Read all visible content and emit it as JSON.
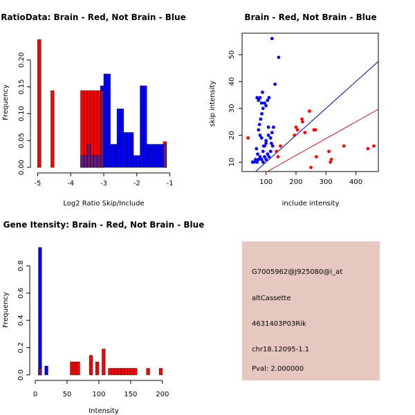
{
  "chart_data": [
    {
      "type": "bar",
      "id": "ratio_hist",
      "title": "RatioData: Brain - Red, Not Brain - Blue",
      "xlabel": "Log2 Ratio Skip/Include",
      "ylabel": "Frequency",
      "xlim": [
        -5.05,
        -0.95
      ],
      "ylim": [
        0,
        0.25
      ],
      "xticks": [
        -5,
        -4,
        -3,
        -2,
        -1
      ],
      "yticks": [
        0.0,
        0.05,
        0.1,
        0.15,
        0.2
      ],
      "ytick_labels": [
        "0.00",
        "0.05",
        "0.10",
        "0.15",
        "0.20"
      ],
      "bin_width": 0.1,
      "series": [
        {
          "name": "Brain",
          "color": "#ff0000",
          "bins": [
            {
              "start": -5.0,
              "value": 0.238
            },
            {
              "start": -4.6,
              "value": 0.143
            },
            {
              "start": -3.7,
              "value": 0.143
            },
            {
              "start": -3.6,
              "value": 0.143
            },
            {
              "start": -3.5,
              "value": 0.143
            },
            {
              "start": -3.4,
              "value": 0.143
            },
            {
              "start": -3.3,
              "value": 0.143
            },
            {
              "start": -3.2,
              "value": 0.143
            },
            {
              "start": -3.1,
              "value": 0.143
            },
            {
              "start": -1.2,
              "value": 0.048
            }
          ]
        },
        {
          "name": "Not Brain",
          "color": "#0000ff",
          "bins": [
            {
              "start": -3.7,
              "value": 0.022
            },
            {
              "start": -3.6,
              "value": 0.022
            },
            {
              "start": -3.5,
              "value": 0.043
            },
            {
              "start": -3.4,
              "value": 0.022
            },
            {
              "start": -3.3,
              "value": 0.022
            },
            {
              "start": -3.2,
              "value": 0.022
            },
            {
              "start": -3.1,
              "value": 0.152
            },
            {
              "start": -3.0,
              "value": 0.174
            },
            {
              "start": -2.9,
              "value": 0.174
            },
            {
              "start": -2.8,
              "value": 0.043
            },
            {
              "start": -2.7,
              "value": 0.043
            },
            {
              "start": -2.6,
              "value": 0.109
            },
            {
              "start": -2.5,
              "value": 0.109
            },
            {
              "start": -2.4,
              "value": 0.065
            },
            {
              "start": -2.3,
              "value": 0.065
            },
            {
              "start": -2.2,
              "value": 0.065
            },
            {
              "start": -2.1,
              "value": 0.022
            },
            {
              "start": -2.0,
              "value": 0.022
            },
            {
              "start": -1.9,
              "value": 0.152
            },
            {
              "start": -1.8,
              "value": 0.152
            },
            {
              "start": -1.7,
              "value": 0.043
            },
            {
              "start": -1.6,
              "value": 0.043
            },
            {
              "start": -1.5,
              "value": 0.043
            },
            {
              "start": -1.4,
              "value": 0.043
            },
            {
              "start": -1.3,
              "value": 0.043
            },
            {
              "start": -1.2,
              "value": 0.043
            }
          ]
        }
      ]
    },
    {
      "type": "scatter",
      "id": "intensity_scatter",
      "title": "Brain - Red, Not Brain - Blue",
      "xlabel": "include intensity",
      "ylabel": "skip intensity",
      "xlim": [
        20,
        475
      ],
      "ylim": [
        6.5,
        58
      ],
      "xticks": [
        100,
        200,
        300,
        400
      ],
      "yticks": [
        10,
        20,
        30,
        40,
        50
      ],
      "lines": [
        {
          "color": "#00008b",
          "slope": 0.1,
          "intercept": 0
        },
        {
          "color": "#b22222",
          "slope": 0.0625,
          "intercept": 0
        }
      ],
      "series": [
        {
          "name": "Not Brain",
          "color": "#0000ff",
          "points": [
            [
              55,
              10
            ],
            [
              60,
              10
            ],
            [
              65,
              11
            ],
            [
              70,
              10
            ],
            [
              75,
              11
            ],
            [
              72,
              13
            ],
            [
              68,
              15
            ],
            [
              80,
              12
            ],
            [
              85,
              11
            ],
            [
              90,
              10
            ],
            [
              95,
              12
            ],
            [
              100,
              11
            ],
            [
              105,
              13
            ],
            [
              110,
              12
            ],
            [
              115,
              14
            ],
            [
              90,
              14
            ],
            [
              95,
              16
            ],
            [
              100,
              18
            ],
            [
              85,
              19
            ],
            [
              80,
              20
            ],
            [
              75,
              22
            ],
            [
              78,
              24
            ],
            [
              82,
              26
            ],
            [
              86,
              28
            ],
            [
              90,
              30
            ],
            [
              95,
              32
            ],
            [
              100,
              31
            ],
            [
              105,
              33
            ],
            [
              110,
              34
            ],
            [
              85,
              32
            ],
            [
              80,
              34
            ],
            [
              70,
              34
            ],
            [
              75,
              33
            ],
            [
              88,
              36
            ],
            [
              92,
              16
            ],
            [
              100,
              17
            ],
            [
              108,
              20
            ],
            [
              115,
              19
            ],
            [
              120,
              21
            ],
            [
              125,
              23
            ],
            [
              118,
              17
            ],
            [
              122,
              16
            ],
            [
              108,
              23
            ],
            [
              130,
              39
            ],
            [
              142,
              49
            ],
            [
              120,
              56
            ]
          ]
        },
        {
          "name": "Brain",
          "color": "#ff0000",
          "points": [
            [
              40,
              19
            ],
            [
              135,
              14
            ],
            [
              140,
              12
            ],
            [
              148,
              16
            ],
            [
              195,
              20
            ],
            [
              200,
              23
            ],
            [
              205,
              22
            ],
            [
              220,
              26
            ],
            [
              222,
              25
            ],
            [
              230,
              21
            ],
            [
              245,
              29
            ],
            [
              250,
              8
            ],
            [
              260,
              22
            ],
            [
              265,
              22
            ],
            [
              268,
              12
            ],
            [
              310,
              14
            ],
            [
              315,
              10
            ],
            [
              318,
              11
            ],
            [
              360,
              16
            ],
            [
              440,
              15
            ],
            [
              460,
              16
            ]
          ]
        }
      ]
    },
    {
      "type": "bar",
      "id": "intensity_hist",
      "title": "Gene Itensity: Brain - Red, Not Brain - Blue",
      "xlabel": "Intensity",
      "ylabel": "Frequency",
      "xlim": [
        0,
        210
      ],
      "ylim": [
        0,
        1.0
      ],
      "xticks": [
        0,
        50,
        100,
        150,
        200
      ],
      "yticks": [
        0.0,
        0.2,
        0.4,
        0.6,
        0.8
      ],
      "ytick_labels": [
        "0.0",
        "0.2",
        "0.4",
        "0.6",
        "0.8"
      ],
      "bin_width": 5,
      "series": [
        {
          "name": "Brain",
          "color": "#ff0000",
          "bins": [
            {
              "start": 5,
              "value": 0.048
            },
            {
              "start": 55,
              "value": 0.095
            },
            {
              "start": 60,
              "value": 0.095
            },
            {
              "start": 65,
              "value": 0.095
            },
            {
              "start": 85,
              "value": 0.143
            },
            {
              "start": 95,
              "value": 0.095
            },
            {
              "start": 105,
              "value": 0.19
            },
            {
              "start": 115,
              "value": 0.048
            },
            {
              "start": 120,
              "value": 0.048
            },
            {
              "start": 125,
              "value": 0.048
            },
            {
              "start": 130,
              "value": 0.048
            },
            {
              "start": 135,
              "value": 0.048
            },
            {
              "start": 140,
              "value": 0.048
            },
            {
              "start": 145,
              "value": 0.048
            },
            {
              "start": 150,
              "value": 0.048
            },
            {
              "start": 155,
              "value": 0.048
            },
            {
              "start": 175,
              "value": 0.048
            },
            {
              "start": 195,
              "value": 0.048
            }
          ]
        },
        {
          "name": "Not Brain",
          "color": "#0000ff",
          "bins": [
            {
              "start": 5,
              "value": 0.935
            },
            {
              "start": 15,
              "value": 0.065
            }
          ]
        }
      ]
    }
  ],
  "info_panel": {
    "background": "#e7c8c0",
    "probe_id": "G7005962@J925080@i_at",
    "event_type": "altCassette",
    "gene_name": "4631403P03Rik",
    "location": "chr18.12095-1.1",
    "pval": "Pval: 2.000000",
    "pval_color": "#b20000"
  }
}
